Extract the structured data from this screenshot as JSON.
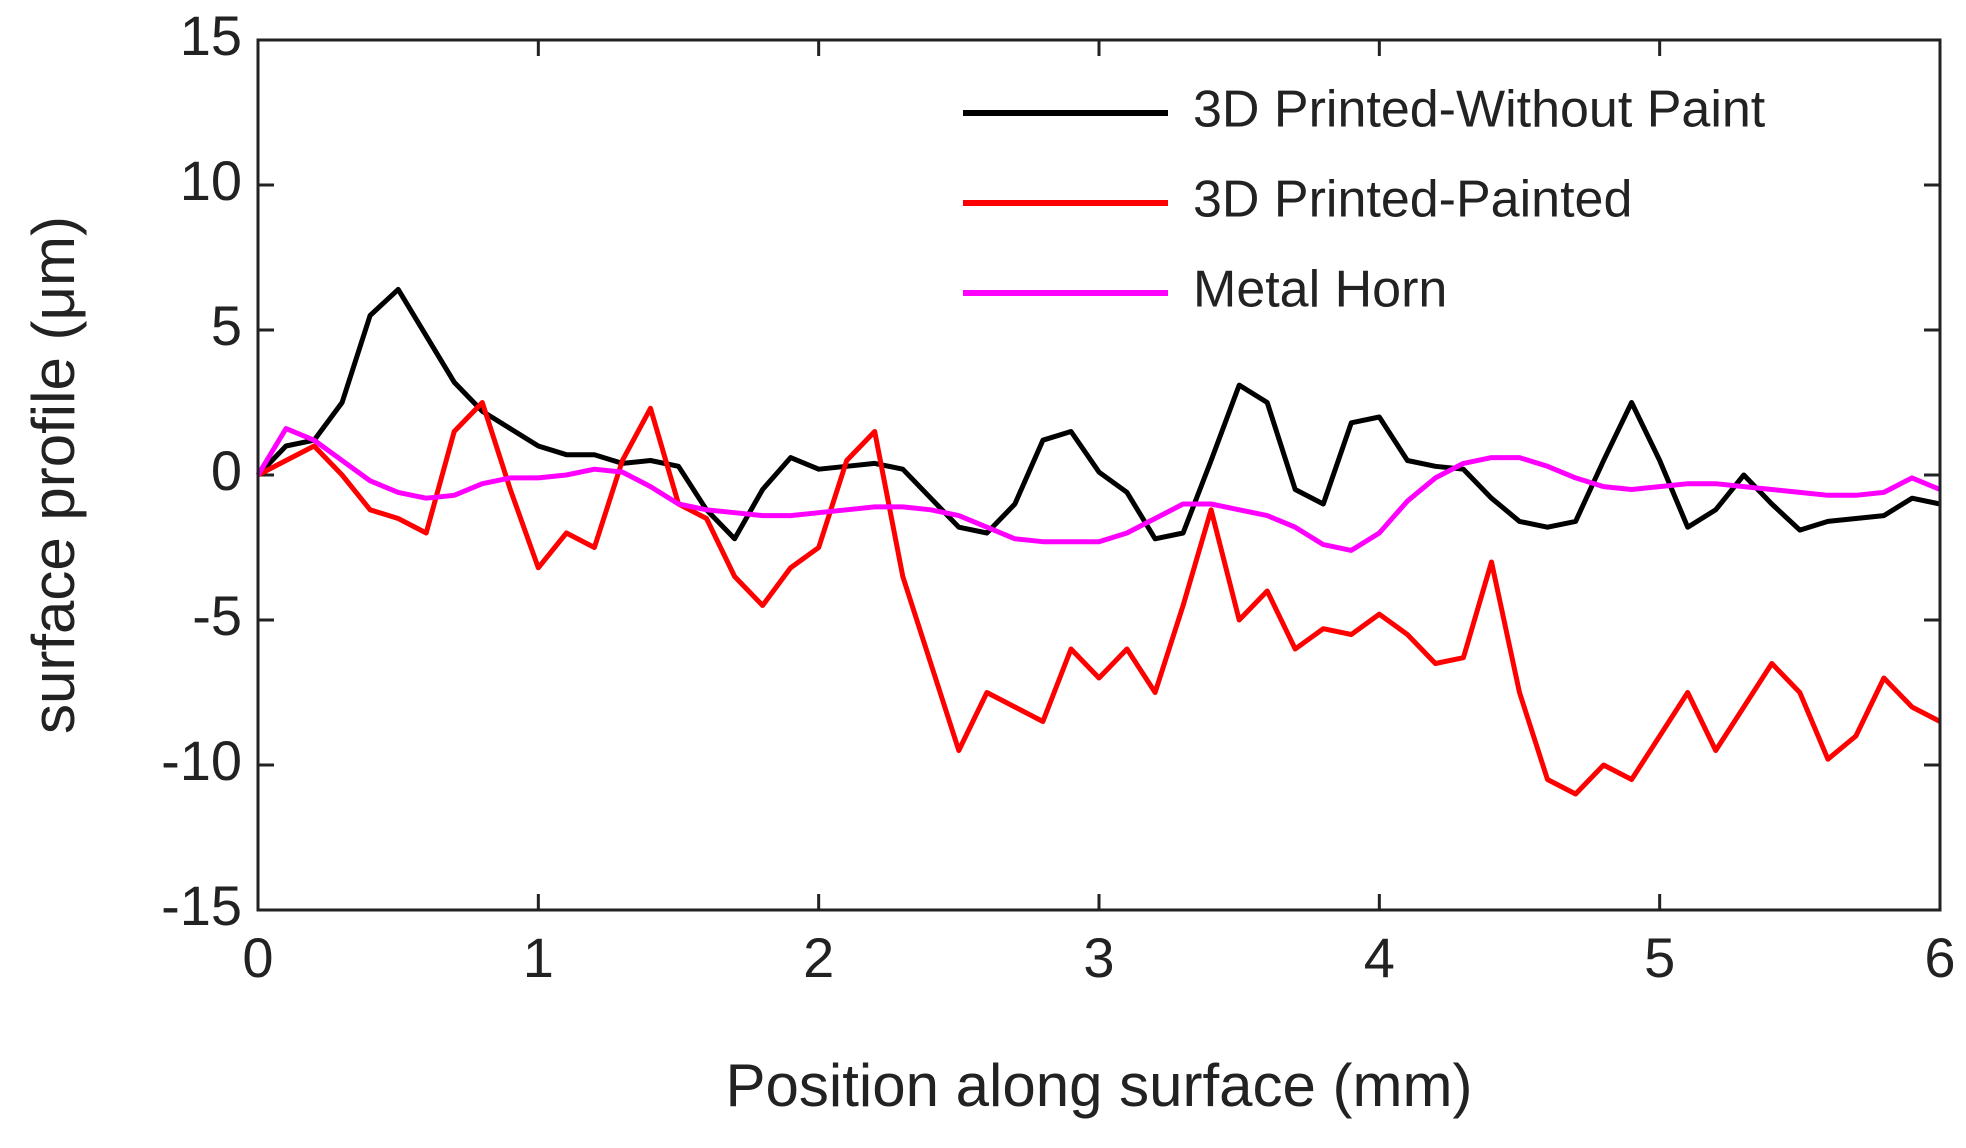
{
  "chart_data": {
    "type": "line",
    "xlabel": "Position along surface (mm)",
    "ylabel": "surface profile (μm)",
    "x": [
      0,
      0.1,
      0.2,
      0.3,
      0.4,
      0.5,
      0.6,
      0.7,
      0.8,
      0.9,
      1,
      1.1,
      1.2,
      1.3,
      1.4,
      1.5,
      1.6,
      1.7,
      1.8,
      1.9,
      2,
      2.1,
      2.2,
      2.3,
      2.4,
      2.5,
      2.6,
      2.7,
      2.8,
      2.9,
      3,
      3.1,
      3.2,
      3.3,
      3.4,
      3.5,
      3.6,
      3.7,
      3.8,
      3.9,
      4,
      4.1,
      4.2,
      4.3,
      4.4,
      4.5,
      4.6,
      4.7,
      4.8,
      4.9,
      5,
      5.1,
      5.2,
      5.3,
      5.4,
      5.5,
      5.6,
      5.7,
      5.8,
      5.9,
      6
    ],
    "series": [
      {
        "name": "3D Printed-Without Paint",
        "color": "#000000",
        "values": [
          0,
          1,
          1.2,
          2.5,
          5.5,
          6.4,
          4.8,
          3.2,
          2.2,
          1.6,
          1,
          0.7,
          0.7,
          0.4,
          0.5,
          0.3,
          -1.2,
          -2.2,
          -0.5,
          0.6,
          0.2,
          0.3,
          0.4,
          0.2,
          -0.8,
          -1.8,
          -2,
          -1,
          1.2,
          1.5,
          0.1,
          -0.6,
          -2.2,
          -2,
          0.5,
          3.1,
          2.5,
          -0.5,
          -1,
          1.8,
          2,
          0.5,
          0.3,
          0.2,
          -0.8,
          -1.6,
          -1.8,
          -1.6,
          0.5,
          2.5,
          0.5,
          -1.8,
          -1.2,
          0,
          -1,
          -1.9,
          -1.6,
          -1.5,
          -1.4,
          -0.8,
          -1
        ]
      },
      {
        "name": "3D Printed-Painted",
        "color": "#ff0000",
        "values": [
          0,
          0.5,
          1,
          0,
          -1.2,
          -1.5,
          -2,
          1.5,
          2.5,
          -0.5,
          -3.2,
          -2,
          -2.5,
          0.5,
          2.3,
          -1,
          -1.5,
          -3.5,
          -4.5,
          -3.2,
          -2.5,
          0.5,
          1.5,
          -3.5,
          -6.5,
          -9.5,
          -7.5,
          -8,
          -8.5,
          -6,
          -7,
          -6,
          -7.5,
          -4.5,
          -1.2,
          -5,
          -4,
          -6,
          -5.3,
          -5.5,
          -4.8,
          -5.5,
          -6.5,
          -6.3,
          -3,
          -7.5,
          -10.5,
          -11,
          -10,
          -10.5,
          -9,
          -7.5,
          -9.5,
          -8,
          -6.5,
          -7.5,
          -9.8,
          -9,
          -7,
          -8,
          -8.5
        ]
      },
      {
        "name": "Metal Horn",
        "color": "#ff00ff",
        "values": [
          0,
          1.6,
          1.2,
          0.5,
          -0.2,
          -0.6,
          -0.8,
          -0.7,
          -0.3,
          -0.1,
          -0.1,
          0,
          0.2,
          0.1,
          -0.4,
          -1,
          -1.2,
          -1.3,
          -1.4,
          -1.4,
          -1.3,
          -1.2,
          -1.1,
          -1.1,
          -1.2,
          -1.4,
          -1.8,
          -2.2,
          -2.3,
          -2.3,
          -2.3,
          -2,
          -1.5,
          -1,
          -1,
          -1.2,
          -1.4,
          -1.8,
          -2.4,
          -2.6,
          -2,
          -0.9,
          -0.1,
          0.4,
          0.6,
          0.6,
          0.3,
          -0.1,
          -0.4,
          -0.5,
          -0.4,
          -0.3,
          -0.3,
          -0.4,
          -0.5,
          -0.6,
          -0.7,
          -0.7,
          -0.6,
          -0.1,
          -0.5
        ]
      }
    ],
    "xlim": [
      0,
      6
    ],
    "xticks": [
      0,
      1,
      2,
      3,
      4,
      5,
      6
    ],
    "ylim": [
      -15,
      15
    ],
    "yticks": [
      -15,
      -10,
      -5,
      0,
      5,
      10,
      15
    ],
    "legend": "upper right"
  }
}
